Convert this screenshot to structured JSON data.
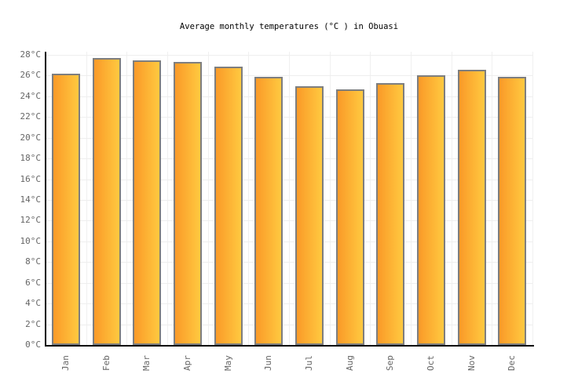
{
  "chart_data": {
    "type": "bar",
    "title": "Average monthly temperatures (°C ) in Obuasi",
    "categories": [
      "Jan",
      "Feb",
      "Mar",
      "Apr",
      "May",
      "Jun",
      "Jul",
      "Aug",
      "Sep",
      "Oct",
      "Nov",
      "Dec"
    ],
    "values": [
      26.2,
      27.7,
      27.5,
      27.3,
      26.9,
      25.9,
      25.0,
      24.7,
      25.3,
      26.0,
      26.6,
      25.9
    ],
    "unit": "°C",
    "xlabel": "",
    "ylabel": "",
    "ylim": [
      0,
      28
    ],
    "ytick_step": 2,
    "ytick_suffix": "°C",
    "grid": true,
    "legend": false,
    "colors": {
      "bar_gradient_left": "#FA9A28",
      "bar_gradient_right": "#FFC940",
      "bar_border": "#7E7E7E",
      "grid_horizontal": "#EEEEEE",
      "grid_vertical": "#F0F0F0",
      "axis": "#000000",
      "tick_label": "#666666",
      "title": "#000000"
    }
  }
}
